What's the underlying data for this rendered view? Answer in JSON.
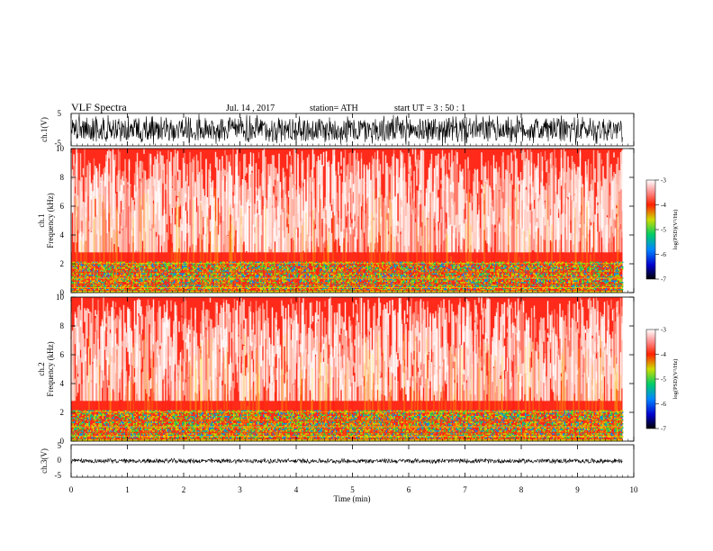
{
  "header": {
    "title": "VLF  Spectra",
    "date": "Jul.  14 , 2017",
    "station": "station= ATH",
    "start": "start  UT  =    3  : 50 : 1"
  },
  "chart_data": [
    {
      "type": "line",
      "panel": "ch1-waveform",
      "ylabel": "ch.1(V)",
      "yticks": [
        "5",
        "-5"
      ],
      "ylim": [
        -5,
        5
      ],
      "xlim": [
        0,
        10
      ],
      "data_end_min": 9.8
    },
    {
      "type": "heatmap",
      "panel": "ch1-spectrogram",
      "ylabel": "ch.1\nFrequency  (kHz)",
      "yticks": [
        "0",
        "2",
        "4",
        "6",
        "8",
        "10"
      ],
      "ylim": [
        0,
        10
      ],
      "xlim": [
        0,
        10
      ],
      "data_end_min": 9.8,
      "colorbar": {
        "label": "log(PSD)(V²/Hz)",
        "ticks": [
          "-3",
          "-4",
          "-5",
          "-6",
          "-7"
        ],
        "range": [
          -7,
          -3
        ]
      },
      "band_khz": [
        0,
        2.1
      ]
    },
    {
      "type": "heatmap",
      "panel": "ch2-spectrogram",
      "ylabel": "ch.2\nFrequency  (kHz)",
      "yticks": [
        "0",
        "2",
        "4",
        "6",
        "8",
        "10"
      ],
      "ylim": [
        0,
        10
      ],
      "xlim": [
        0,
        10
      ],
      "data_end_min": 9.8,
      "colorbar": {
        "label": "log(PSD)(V²/Hz)",
        "ticks": [
          "-3",
          "-4",
          "-5",
          "-6",
          "-7"
        ],
        "range": [
          -7,
          -3
        ]
      },
      "band_khz": [
        0,
        2.1
      ]
    },
    {
      "type": "line",
      "panel": "ch3-waveform",
      "ylabel": "ch.3(V)",
      "yticks": [
        "5",
        "0",
        "-5"
      ],
      "ylim": [
        -5,
        5
      ],
      "xlim": [
        0,
        10
      ],
      "data_end_min": 9.8,
      "xlabel": "Time  (min)",
      "xticks": [
        "0",
        "1",
        "2",
        "3",
        "4",
        "5",
        "6",
        "7",
        "8",
        "9",
        "10"
      ]
    }
  ],
  "colors": {
    "colormap": [
      "#000000",
      "#0000cc",
      "#0088ff",
      "#00cc66",
      "#ccdd00",
      "#ff2200",
      "#ffffff"
    ],
    "background_high_psd": "#ff2a1a",
    "trace": "#000000"
  }
}
